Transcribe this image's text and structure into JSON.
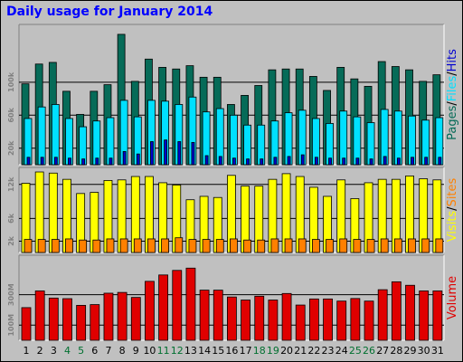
{
  "title": "Daily usage for January 2014",
  "colors": {
    "pages": "#066b58",
    "files": "#00e0ff",
    "hits": "#0000d0",
    "visits": "#ffff00",
    "sites": "#ff8000",
    "volume": "#e00000",
    "weekend_label": "#007030",
    "weekday_label": "#000000",
    "panel_bg": "#c0c0c0",
    "grid": "#000000"
  },
  "chart_data": [
    {
      "type": "bar",
      "name": "hits-files-pages",
      "categories": [
        "1",
        "2",
        "3",
        "4",
        "5",
        "6",
        "7",
        "8",
        "9",
        "10",
        "11",
        "12",
        "13",
        "14",
        "15",
        "16",
        "17",
        "18",
        "19",
        "20",
        "21",
        "22",
        "23",
        "24",
        "25",
        "26",
        "27",
        "28",
        "29",
        "30",
        "31"
      ],
      "weekend_days": [
        "4",
        "5",
        "11",
        "12",
        "18",
        "19",
        "25",
        "26"
      ],
      "series": [
        {
          "name": "Pages",
          "values": [
            98000,
            122000,
            124000,
            89000,
            61000,
            89000,
            97000,
            158000,
            101000,
            128000,
            118000,
            116000,
            120000,
            106000,
            106000,
            73000,
            84000,
            96000,
            115000,
            116000,
            116000,
            107000,
            90000,
            118000,
            104000,
            95000,
            125000,
            119000,
            115000,
            101000,
            109000
          ]
        },
        {
          "name": "Files",
          "values": [
            56000,
            70000,
            73000,
            56000,
            46000,
            53000,
            57000,
            78000,
            58000,
            78000,
            77000,
            73000,
            82000,
            64000,
            68000,
            60000,
            48000,
            48000,
            53000,
            63000,
            66000,
            56000,
            50000,
            65000,
            58000,
            51000,
            67000,
            65000,
            59000,
            54000,
            57000
          ]
        },
        {
          "name": "Hits",
          "values": [
            9000,
            9000,
            9000,
            8000,
            7000,
            8000,
            8000,
            16000,
            13000,
            28000,
            30000,
            28000,
            27000,
            11000,
            10000,
            8000,
            7000,
            7000,
            9000,
            10000,
            12000,
            9000,
            8000,
            8000,
            8000,
            7000,
            10000,
            8000,
            9000,
            9000,
            9000
          ]
        }
      ],
      "y_ticks": [
        "20k",
        "60k",
        "100k"
      ],
      "ylim": [
        0,
        170000
      ],
      "legend": [
        "Pages",
        "/",
        "Files",
        "/",
        "Hits"
      ]
    },
    {
      "type": "bar",
      "name": "sites-visits",
      "categories": [
        "1",
        "2",
        "3",
        "4",
        "5",
        "6",
        "7",
        "8",
        "9",
        "10",
        "11",
        "12",
        "13",
        "14",
        "15",
        "16",
        "17",
        "18",
        "19",
        "20",
        "21",
        "22",
        "23",
        "24",
        "25",
        "26",
        "27",
        "28",
        "29",
        "30",
        "31"
      ],
      "series": [
        {
          "name": "Visits",
          "values": [
            12200,
            14200,
            14000,
            12900,
            10400,
            10600,
            12700,
            12800,
            13400,
            13400,
            12300,
            11900,
            9300,
            9900,
            9700,
            13600,
            11700,
            11700,
            12900,
            13900,
            13400,
            11500,
            9900,
            12800,
            9500,
            12300,
            12900,
            12900,
            13500,
            13000,
            12800
          ]
        },
        {
          "name": "Sites",
          "values": [
            2300,
            2300,
            2300,
            2400,
            2200,
            2200,
            2400,
            2400,
            2400,
            2400,
            2400,
            2600,
            2300,
            2300,
            2300,
            2400,
            2200,
            2200,
            2400,
            2400,
            2400,
            2300,
            2300,
            2400,
            2300,
            2300,
            2400,
            2400,
            2400,
            2400,
            2400
          ]
        }
      ],
      "y_ticks": [
        "2k",
        "6k",
        "12k"
      ],
      "ylim": [
        0,
        15000
      ],
      "legend": [
        "Visits",
        "/",
        "Sites"
      ]
    },
    {
      "type": "bar",
      "name": "volume",
      "categories": [
        "1",
        "2",
        "3",
        "4",
        "5",
        "6",
        "7",
        "8",
        "9",
        "10",
        "11",
        "12",
        "13",
        "14",
        "15",
        "16",
        "17",
        "18",
        "19",
        "20",
        "21",
        "22",
        "23",
        "24",
        "25",
        "26",
        "27",
        "28",
        "29",
        "30",
        "31"
      ],
      "series": [
        {
          "name": "Volume",
          "values": [
            215,
            325,
            278,
            274,
            230,
            235,
            310,
            315,
            282,
            388,
            430,
            460,
            475,
            330,
            330,
            285,
            265,
            290,
            265,
            308,
            232,
            272,
            272,
            258,
            275,
            258,
            333,
            385,
            362,
            325,
            325
          ]
        }
      ],
      "y_ticks": [
        "100M",
        "300M"
      ],
      "ylim": [
        0,
        560
      ],
      "legend": [
        "Volume"
      ]
    }
  ]
}
